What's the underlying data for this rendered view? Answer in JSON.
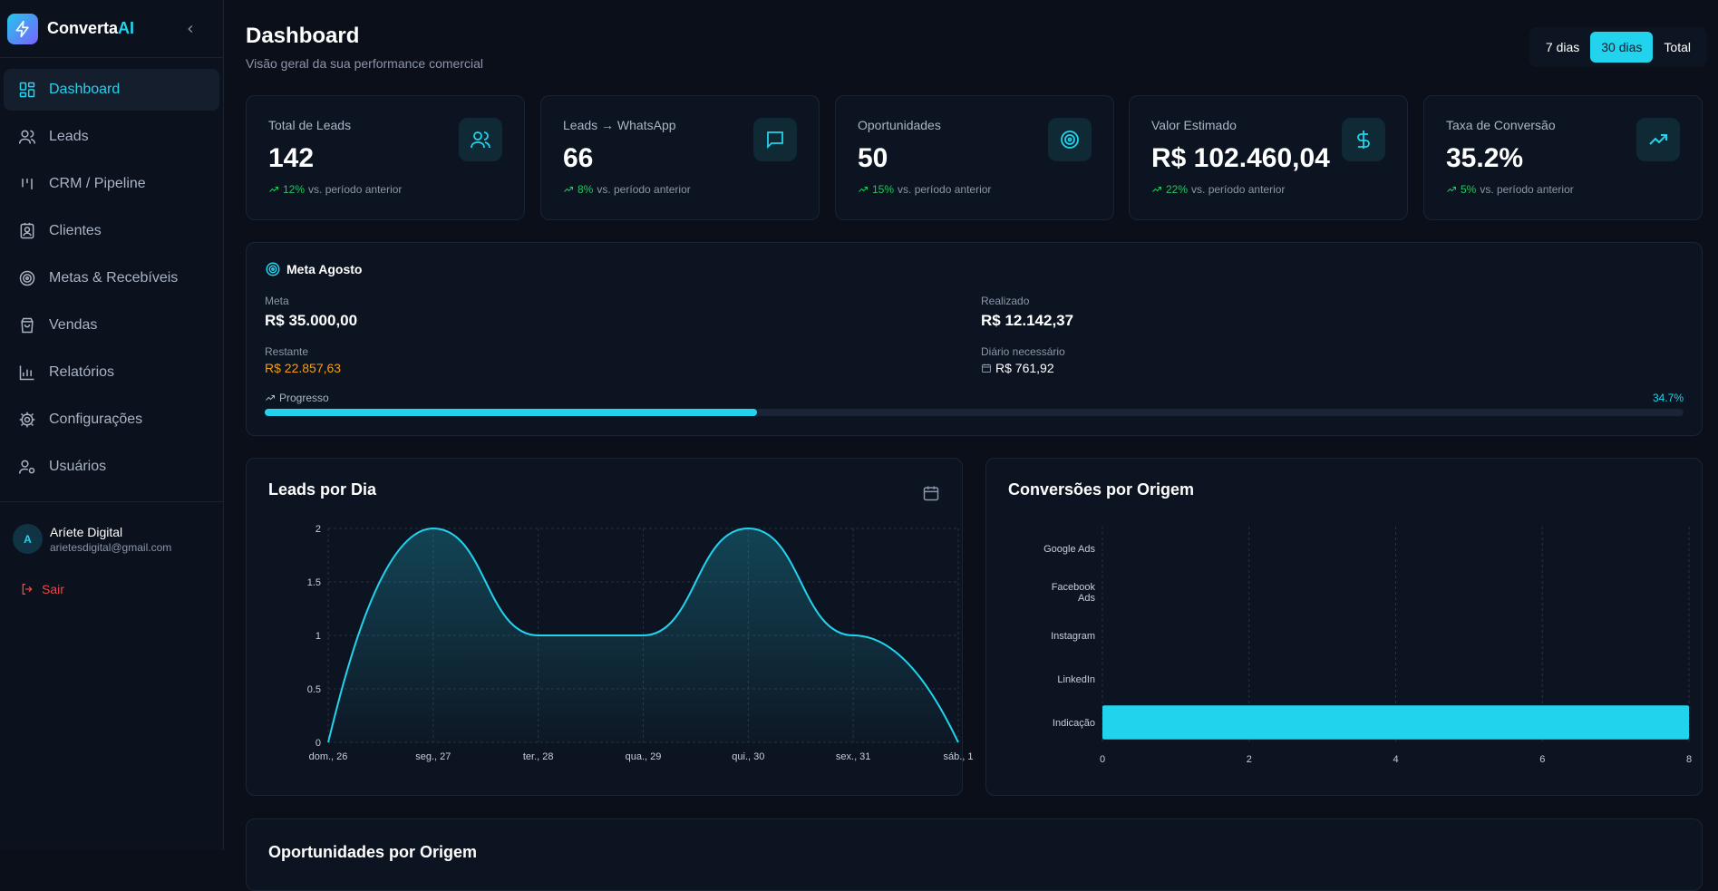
{
  "brand": {
    "name_main": "Converta",
    "name_accent": "AI"
  },
  "sidebar": {
    "items": [
      {
        "label": "Dashboard",
        "icon": "dashboard-icon",
        "active": true
      },
      {
        "label": "Leads",
        "icon": "users-icon"
      },
      {
        "label": "CRM / Pipeline",
        "icon": "kanban-icon"
      },
      {
        "label": "Clientes",
        "icon": "contact-card-icon"
      },
      {
        "label": "Metas & Recebíveis",
        "icon": "target-icon"
      },
      {
        "label": "Vendas",
        "icon": "shopping-bag-icon"
      },
      {
        "label": "Relatórios",
        "icon": "bar-chart-icon"
      },
      {
        "label": "Configurações",
        "icon": "gear-icon"
      },
      {
        "label": "Usuários",
        "icon": "user-cog-icon"
      }
    ],
    "user": {
      "initial": "A",
      "name": "Aríete Digital",
      "email": "arietesdigital@gmail.com"
    },
    "logout_label": "Sair"
  },
  "header": {
    "title": "Dashboard",
    "subtitle": "Visão geral da sua performance comercial",
    "ranges": [
      {
        "label": "7 dias"
      },
      {
        "label": "30 dias",
        "active": true
      },
      {
        "label": "Total"
      }
    ]
  },
  "kpis": [
    {
      "label": "Total de Leads",
      "value": "142",
      "trend": "12%",
      "trend_text": "vs. período anterior",
      "icon": "users-icon"
    },
    {
      "label": "Leads → WhatsApp",
      "value": "66",
      "trend": "8%",
      "trend_text": "vs. período anterior",
      "icon": "message-icon"
    },
    {
      "label": "Oportunidades",
      "value": "50",
      "trend": "15%",
      "trend_text": "vs. período anterior",
      "icon": "target-icon"
    },
    {
      "label": "Valor Estimado",
      "value": "R$ 102.460,04",
      "trend": "22%",
      "trend_text": "vs. período anterior",
      "icon": "dollar-icon"
    },
    {
      "label": "Taxa de Conversão",
      "value": "35.2%",
      "trend": "5%",
      "trend_text": "vs. período anterior",
      "icon": "trending-up-icon"
    }
  ],
  "goal": {
    "title": "Meta Agosto",
    "meta_label": "Meta",
    "meta_value": "R$ 35.000,00",
    "realizado_label": "Realizado",
    "realizado_value": "R$ 12.142,37",
    "restante_label": "Restante",
    "restante_value": "R$ 22.857,63",
    "diario_label": "Diário necessário",
    "diario_value": "R$ 761,92",
    "progress_label": "Progresso",
    "progress_pct_label": "34.7%",
    "progress": 34.7
  },
  "colors": {
    "accent": "#22d3ee",
    "positive": "#22c55e",
    "warning": "#f59e0b",
    "danger": "#ef4444"
  },
  "chart_data": [
    {
      "type": "area",
      "title": "Leads por Dia",
      "x": [
        "dom., 26",
        "seg., 27",
        "ter., 28",
        "qua., 29",
        "qui., 30",
        "sex., 31",
        "sáb., 1"
      ],
      "series": [
        {
          "values": [
            0,
            2,
            1,
            1,
            2,
            1,
            0
          ]
        }
      ],
      "ylim": [
        0,
        2
      ],
      "yticks": [
        "0",
        "0.5",
        "1",
        "1.5",
        "2"
      ],
      "grid": true
    },
    {
      "type": "bar",
      "orientation": "horizontal",
      "title": "Conversões por Origem",
      "categories": [
        "Google Ads",
        "Facebook Ads",
        "Instagram",
        "LinkedIn",
        "Indicação"
      ],
      "category_lines": [
        [
          "Google Ads"
        ],
        [
          "Facebook",
          "Ads"
        ],
        [
          "Instagram"
        ],
        [
          "LinkedIn"
        ],
        [
          "Indicação"
        ]
      ],
      "values": [
        0,
        0,
        0,
        0,
        8
      ],
      "xlim": [
        0,
        8
      ],
      "xticks": [
        "0",
        "2",
        "4",
        "6",
        "8"
      ],
      "grid": true
    }
  ],
  "next_section_title": "Oportunidades por Origem"
}
